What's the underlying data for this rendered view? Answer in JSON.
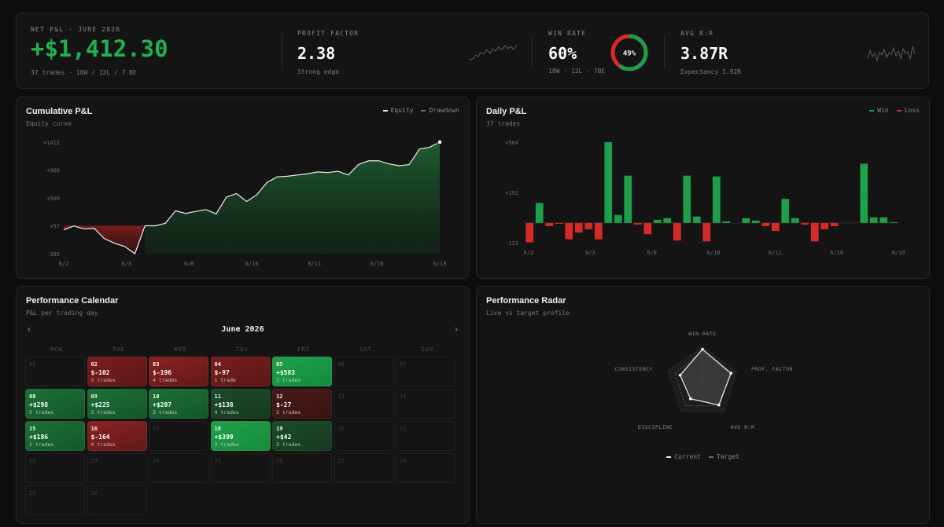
{
  "stats": {
    "net": {
      "label": "NET P&L · JUNE 2026",
      "value": "+$1,412.30",
      "sub": "37 trades · 18W / 12L / 7 BE"
    },
    "pf": {
      "label": "PROFIT FACTOR",
      "value": "2.38",
      "sub": "Strong edge"
    },
    "wr": {
      "label": "WIN RATE",
      "value": "60%",
      "sub": "18W · 12L · 7BE",
      "ring_label": "49%",
      "ring_win_fraction": 0.6
    },
    "rr": {
      "label": "AVG R:R",
      "value": "3.87R",
      "sub": "Expectancy 1.92R"
    }
  },
  "colors": {
    "green": "#1e9e48",
    "red": "#d42a2a",
    "bg": "#141414"
  },
  "cumulative": {
    "title": "Cumulative P&L",
    "subtitle": "Equity curve",
    "legend": [
      "Equity",
      "Drawdown"
    ],
    "y_ticks": [
      "+1412",
      "+960",
      "+509",
      "+57",
      "-395"
    ],
    "x_ticks": [
      "6/2",
      "6/3",
      "6/8",
      "6/10",
      "6/11",
      "6/16",
      "6/19"
    ]
  },
  "daily": {
    "title": "Daily P&L",
    "subtitle": "37 trades",
    "legend": [
      "Win",
      "Loss"
    ],
    "y_ticks": [
      "+504",
      "+191",
      "-123"
    ],
    "x_ticks": [
      "6/2",
      "6/3",
      "6/8",
      "6/10",
      "6/11",
      "6/16",
      "6/19"
    ]
  },
  "calendar": {
    "title": "Performance Calendar",
    "subtitle": "P&L per trading day",
    "month": "June 2026",
    "prev_icon": "‹",
    "next_icon": "›",
    "weekdays": [
      "MON",
      "TUE",
      "WED",
      "THU",
      "FRI",
      "SAT",
      "SUN"
    ],
    "days": [
      {
        "d": "01",
        "pnl": "",
        "trades": "",
        "tone": ""
      },
      {
        "d": "02",
        "pnl": "$-102",
        "trades": "3 trades",
        "tone": "loss"
      },
      {
        "d": "03",
        "pnl": "$-196",
        "trades": "4 trades",
        "tone": "loss2"
      },
      {
        "d": "04",
        "pnl": "$-97",
        "trades": "1 trade",
        "tone": "loss"
      },
      {
        "d": "05",
        "pnl": "+$583",
        "trades": "2 trades",
        "tone": "win3"
      },
      {
        "d": "06",
        "pnl": "",
        "trades": "",
        "tone": ""
      },
      {
        "d": "07",
        "pnl": "",
        "trades": "",
        "tone": ""
      },
      {
        "d": "08",
        "pnl": "+$298",
        "trades": "5 trades",
        "tone": "win2"
      },
      {
        "d": "09",
        "pnl": "+$225",
        "trades": "3 trades",
        "tone": "win2"
      },
      {
        "d": "10",
        "pnl": "+$207",
        "trades": "3 trades",
        "tone": "win2"
      },
      {
        "d": "11",
        "pnl": "+$138",
        "trades": "4 trades",
        "tone": "win1"
      },
      {
        "d": "12",
        "pnl": "$-27",
        "trades": "2 trades",
        "tone": "loss0"
      },
      {
        "d": "13",
        "pnl": "",
        "trades": "",
        "tone": ""
      },
      {
        "d": "14",
        "pnl": "",
        "trades": "",
        "tone": ""
      },
      {
        "d": "15",
        "pnl": "+$186",
        "trades": "2 trades",
        "tone": "win2"
      },
      {
        "d": "16",
        "pnl": "$-164",
        "trades": "4 trades",
        "tone": "loss2"
      },
      {
        "d": "17",
        "pnl": "",
        "trades": "",
        "tone": ""
      },
      {
        "d": "18",
        "pnl": "+$399",
        "trades": "2 trades",
        "tone": "win3"
      },
      {
        "d": "19",
        "pnl": "+$42",
        "trades": "2 trades",
        "tone": "win1"
      },
      {
        "d": "20",
        "pnl": "",
        "trades": "",
        "tone": ""
      },
      {
        "d": "21",
        "pnl": "",
        "trades": "",
        "tone": ""
      },
      {
        "d": "22",
        "pnl": "",
        "trades": "",
        "tone": ""
      },
      {
        "d": "23",
        "pnl": "",
        "trades": "",
        "tone": ""
      },
      {
        "d": "24",
        "pnl": "",
        "trades": "",
        "tone": ""
      },
      {
        "d": "25",
        "pnl": "",
        "trades": "",
        "tone": ""
      },
      {
        "d": "26",
        "pnl": "",
        "trades": "",
        "tone": ""
      },
      {
        "d": "27",
        "pnl": "",
        "trades": "",
        "tone": ""
      },
      {
        "d": "28",
        "pnl": "",
        "trades": "",
        "tone": ""
      },
      {
        "d": "29",
        "pnl": "",
        "trades": "",
        "tone": ""
      },
      {
        "d": "30",
        "pnl": "",
        "trades": "",
        "tone": ""
      }
    ]
  },
  "radar": {
    "title": "Performance Radar",
    "subtitle": "Live vs target profile",
    "axes": [
      "WIN RATE",
      "PROF. FACTOR",
      "AVG R:R",
      "DISCIPLINE",
      "CONSISTENCY"
    ],
    "legend": [
      "Current",
      "Target"
    ]
  },
  "chart_data": [
    {
      "type": "line",
      "title": "Cumulative P&L",
      "ylim": [
        -395,
        1412
      ],
      "series": [
        {
          "name": "Equity",
          "values": [
            -10,
            55,
            5,
            15,
            -150,
            -225,
            -278,
            -395,
            57,
            57,
            97,
            300,
            257,
            290,
            320,
            250,
            520,
            580,
            450,
            560,
            760,
            850,
            860,
            880,
            900,
            930,
            920,
            940,
            880,
            1050,
            1110,
            1110,
            1060,
            1030,
            1050,
            1300,
            1330,
            1412
          ]
        }
      ]
    },
    {
      "type": "bar",
      "title": "Daily P&L",
      "ylim": [
        -123,
        504
      ],
      "series": [
        {
          "name": "Win",
          "values": [
            0,
            125,
            0,
            0,
            0,
            0,
            0,
            0,
            504,
            50,
            295,
            0,
            0,
            20,
            30,
            0,
            295,
            40,
            0,
            290,
            10,
            0,
            30,
            15,
            0,
            0,
            150,
            30,
            0,
            0,
            0,
            0,
            0,
            0,
            370,
            35,
            35,
            5
          ]
        },
        {
          "name": "Loss",
          "values": [
            -120,
            0,
            -20,
            -5,
            -102,
            -60,
            -40,
            -102,
            0,
            0,
            0,
            -10,
            -70,
            0,
            0,
            -110,
            0,
            0,
            -115,
            0,
            0,
            0,
            0,
            0,
            -20,
            -50,
            0,
            0,
            -10,
            -115,
            -40,
            -20,
            0,
            0,
            0,
            0,
            0,
            0
          ]
        }
      ]
    },
    {
      "type": "radar",
      "title": "Performance Radar",
      "categories": [
        "WIN RATE",
        "PROF. FACTOR",
        "AVG R:R",
        "DISCIPLINE",
        "CONSISTENCY"
      ],
      "series": [
        {
          "name": "Current",
          "values": [
            0.92,
            0.83,
            0.77,
            0.56,
            0.65
          ]
        },
        {
          "name": "Target",
          "values": [
            0.88,
            0.8,
            0.8,
            0.8,
            0.8
          ]
        }
      ]
    }
  ]
}
